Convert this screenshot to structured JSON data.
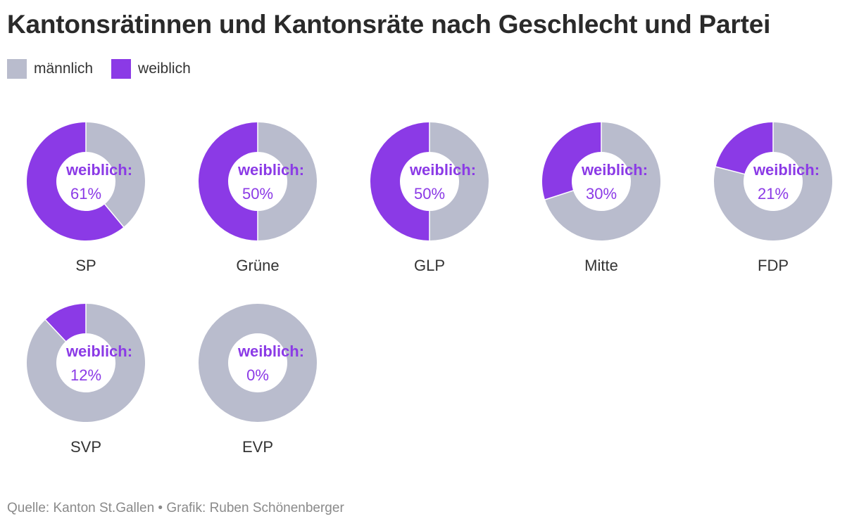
{
  "title": "Kantonsrätinnen und Kantonsräte nach Geschlecht und Partei",
  "legend": [
    {
      "label": "männlich",
      "color": "#b9bccd"
    },
    {
      "label": "weiblich",
      "color": "#8b3ae6"
    }
  ],
  "center_label": "weiblich:",
  "source": "Quelle: Kanton St.Gallen • Grafik: Ruben Schönenberger",
  "chart_data": {
    "type": "pie",
    "variant": "donut",
    "title": "Kantonsrätinnen und Kantonsräte nach Geschlecht und Partei",
    "series_names": [
      "männlich",
      "weiblich"
    ],
    "colors": {
      "männlich": "#b9bccd",
      "weiblich": "#8b3ae6"
    },
    "legend_position": "top-left",
    "charts": [
      {
        "category": "SP",
        "weiblich": 61,
        "männlich": 39,
        "label": "61%"
      },
      {
        "category": "Grüne",
        "weiblich": 50,
        "männlich": 50,
        "label": "50%"
      },
      {
        "category": "GLP",
        "weiblich": 50,
        "männlich": 50,
        "label": "50%"
      },
      {
        "category": "Mitte",
        "weiblich": 30,
        "männlich": 70,
        "label": "30%"
      },
      {
        "category": "FDP",
        "weiblich": 21,
        "männlich": 79,
        "label": "21%"
      },
      {
        "category": "SVP",
        "weiblich": 12,
        "männlich": 88,
        "label": "12%"
      },
      {
        "category": "EVP",
        "weiblich": 0,
        "männlich": 100,
        "label": "0%"
      }
    ]
  }
}
